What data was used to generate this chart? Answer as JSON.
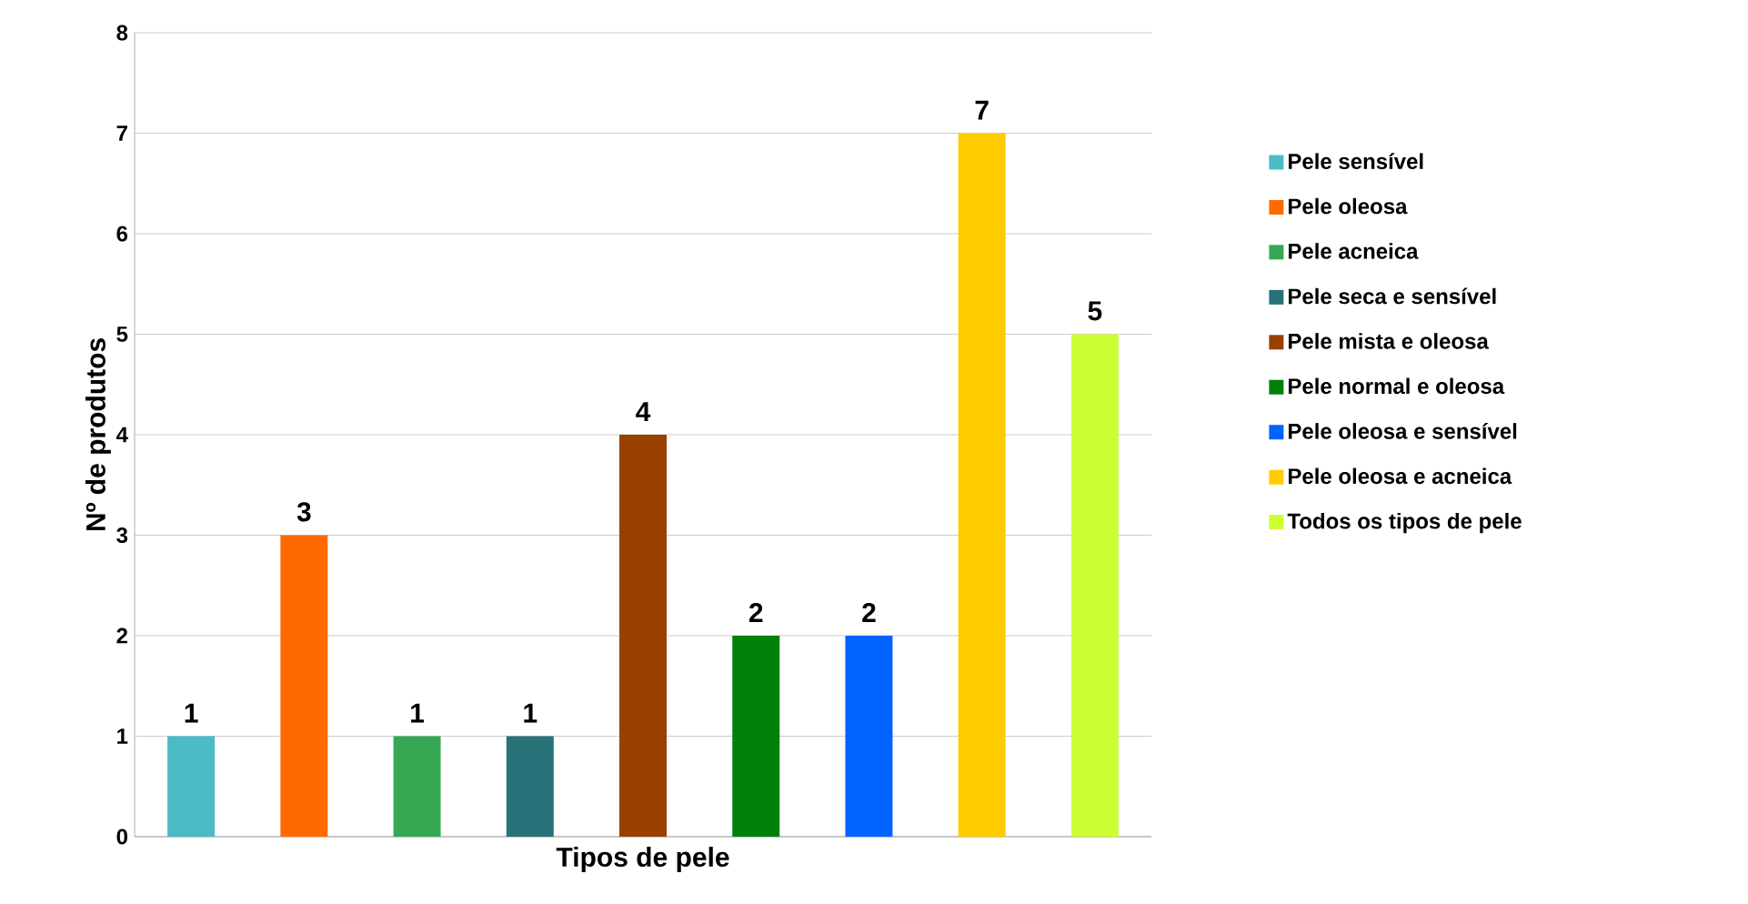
{
  "chart_data": {
    "type": "bar",
    "xlabel": "Tipos de pele",
    "ylabel": "Nº de produtos",
    "categories": [
      null,
      null,
      null,
      null,
      null,
      null,
      null,
      null,
      null
    ],
    "series": [
      {
        "name": "Pele sensível",
        "color": "#4bbbc6",
        "values": [
          1,
          null,
          null,
          null,
          null,
          null,
          null,
          null,
          null
        ]
      },
      {
        "name": "Pele oleosa",
        "color": "#ff6a00",
        "values": [
          null,
          3,
          null,
          null,
          null,
          null,
          null,
          null,
          null
        ]
      },
      {
        "name": "Pele acneica",
        "color": "#36a854",
        "values": [
          null,
          null,
          1,
          null,
          null,
          null,
          null,
          null,
          null
        ]
      },
      {
        "name": "Pele seca e sensível",
        "color": "#267278",
        "values": [
          null,
          null,
          null,
          1,
          null,
          null,
          null,
          null,
          null
        ]
      },
      {
        "name": "Pele mista e oleosa",
        "color": "#993f00",
        "values": [
          null,
          null,
          null,
          null,
          4,
          null,
          null,
          null,
          null
        ]
      },
      {
        "name": "Pele normal e oleosa",
        "color": "#00800b",
        "values": [
          null,
          null,
          null,
          null,
          null,
          2,
          null,
          null,
          null
        ]
      },
      {
        "name": "Pele oleosa e sensível",
        "color": "#0063ff",
        "values": [
          null,
          null,
          null,
          null,
          null,
          null,
          2,
          null,
          null
        ]
      },
      {
        "name": "Pele oleosa e acneica",
        "color": "#ffcc00",
        "values": [
          null,
          null,
          null,
          null,
          null,
          null,
          null,
          7,
          null
        ]
      },
      {
        "name": "Todos os tipos de pele",
        "color": "#ccff33",
        "values": [
          null,
          null,
          null,
          null,
          null,
          null,
          null,
          null,
          5
        ]
      }
    ],
    "ylim": [
      0,
      8
    ],
    "yticks": [
      0,
      1,
      2,
      3,
      4,
      5,
      6,
      7,
      8
    ],
    "grid": "y",
    "legend": "right",
    "data_labels": true
  }
}
